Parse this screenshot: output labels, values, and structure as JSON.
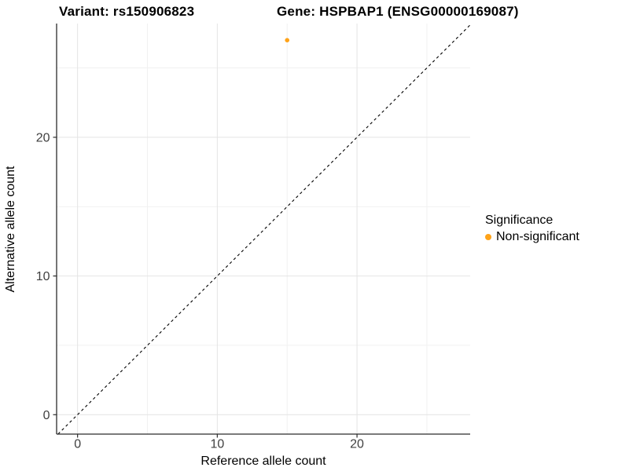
{
  "chart_data": {
    "type": "scatter",
    "title_left": "Variant: rs150906823",
    "title_right": "Gene: HSPBAP1 (ENSG00000169087)",
    "xlabel": "Reference allele count",
    "ylabel": "Alternative allele count",
    "xlim": [
      -1.5,
      28.1
    ],
    "ylim": [
      -1.4,
      28.2
    ],
    "x_major_ticks": [
      0,
      10,
      20
    ],
    "y_major_ticks": [
      0,
      10,
      20
    ],
    "x_minor_gridlines": [
      5,
      15,
      25
    ],
    "y_minor_gridlines": [
      5,
      15,
      25
    ],
    "grid": true,
    "grid_major_color": "#E4E4E4",
    "grid_minor_color": "#F1F1F1",
    "axis_line_color": "#2B2B2B",
    "tick_label_color": "#404040",
    "reference_line": {
      "equation": "y = x",
      "style": "dashed",
      "color": "#000000"
    },
    "series": [
      {
        "name": "Non-significant",
        "color": "#FFA319",
        "points": [
          {
            "x": 15,
            "y": 27
          }
        ]
      }
    ],
    "legend": {
      "title": "Significance",
      "position": "right",
      "items": [
        {
          "label": "Non-significant",
          "color": "#FFA319"
        }
      ]
    }
  }
}
